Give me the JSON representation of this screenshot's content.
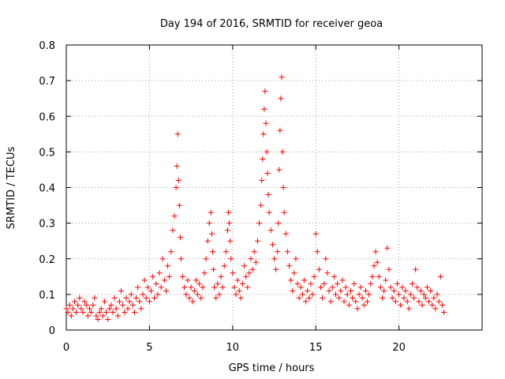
{
  "chart_data": {
    "type": "scatter",
    "title": "Day 194 of 2016, SRMTID for receiver geoa",
    "xlabel": "GPS time / hours",
    "ylabel": "SRMTID / TECUs",
    "xlim": [
      0,
      25
    ],
    "ylim": [
      0,
      0.8
    ],
    "xticks": [
      0,
      5,
      10,
      15,
      20
    ],
    "xtick_labels": [
      "0",
      "5",
      "10",
      "15",
      "20"
    ],
    "yticks": [
      0,
      0.1,
      0.2,
      0.3,
      0.4,
      0.5,
      0.6,
      0.7,
      0.8
    ],
    "ytick_labels": [
      "0",
      "0.1",
      "0.2",
      "0.3",
      "0.4",
      "0.5",
      "0.6",
      "0.7",
      "0.8"
    ],
    "grid": true,
    "marker": "plus",
    "color": "#ff0000",
    "series": [
      {
        "name": "SRMTID",
        "x": [
          0.0,
          0.1,
          0.2,
          0.3,
          0.4,
          0.5,
          0.6,
          0.7,
          0.8,
          0.9,
          1.0,
          1.1,
          1.2,
          1.3,
          1.4,
          1.5,
          1.6,
          1.7,
          1.8,
          1.9,
          2.0,
          2.1,
          2.2,
          2.3,
          2.4,
          2.5,
          2.6,
          2.7,
          2.8,
          2.9,
          3.0,
          3.1,
          3.2,
          3.3,
          3.4,
          3.5,
          3.6,
          3.7,
          3.8,
          3.9,
          4.0,
          4.1,
          4.2,
          4.3,
          4.4,
          4.5,
          4.6,
          4.7,
          4.8,
          4.9,
          5.0,
          5.1,
          5.2,
          5.3,
          5.4,
          5.5,
          5.6,
          5.7,
          5.8,
          5.9,
          6.0,
          6.1,
          6.2,
          6.3,
          6.4,
          6.5,
          6.6,
          6.65,
          6.7,
          6.75,
          6.8,
          6.85,
          6.9,
          7.0,
          7.1,
          7.2,
          7.3,
          7.4,
          7.5,
          7.6,
          7.7,
          7.8,
          7.9,
          8.0,
          8.1,
          8.2,
          8.3,
          8.4,
          8.5,
          8.6,
          8.7,
          8.75,
          8.8,
          8.85,
          8.9,
          9.0,
          9.1,
          9.2,
          9.3,
          9.4,
          9.5,
          9.6,
          9.7,
          9.75,
          9.8,
          9.85,
          9.9,
          10.0,
          10.1,
          10.2,
          10.3,
          10.4,
          10.5,
          10.6,
          10.7,
          10.8,
          10.9,
          11.0,
          11.1,
          11.2,
          11.3,
          11.4,
          11.5,
          11.6,
          11.7,
          11.75,
          11.8,
          11.85,
          11.9,
          11.95,
          12.0,
          12.05,
          12.1,
          12.15,
          12.2,
          12.3,
          12.4,
          12.5,
          12.6,
          12.7,
          12.75,
          12.8,
          12.85,
          12.9,
          12.95,
          13.0,
          13.05,
          13.1,
          13.2,
          13.3,
          13.4,
          13.5,
          13.6,
          13.7,
          13.8,
          13.9,
          14.0,
          14.1,
          14.2,
          14.3,
          14.4,
          14.5,
          14.6,
          14.7,
          14.8,
          14.9,
          15.0,
          15.1,
          15.2,
          15.3,
          15.4,
          15.5,
          15.6,
          15.7,
          15.8,
          15.9,
          16.0,
          16.1,
          16.2,
          16.3,
          16.4,
          16.5,
          16.6,
          16.7,
          16.8,
          16.9,
          17.0,
          17.1,
          17.2,
          17.3,
          17.4,
          17.5,
          17.6,
          17.7,
          17.8,
          17.9,
          18.0,
          18.1,
          18.2,
          18.3,
          18.4,
          18.5,
          18.6,
          18.7,
          18.8,
          18.9,
          19.0,
          19.1,
          19.2,
          19.3,
          19.4,
          19.5,
          19.6,
          19.7,
          19.8,
          19.9,
          20.0,
          20.1,
          20.2,
          20.3,
          20.4,
          20.5,
          20.6,
          20.7,
          20.8,
          20.9,
          21.0,
          21.1,
          21.2,
          21.3,
          21.4,
          21.5,
          21.6,
          21.7,
          21.8,
          21.9,
          22.0,
          22.1,
          22.2,
          22.3,
          22.4,
          22.5,
          22.6,
          22.7
        ],
        "y": [
          0.06,
          0.05,
          0.07,
          0.04,
          0.06,
          0.08,
          0.05,
          0.07,
          0.09,
          0.06,
          0.05,
          0.08,
          0.07,
          0.04,
          0.06,
          0.05,
          0.07,
          0.09,
          0.04,
          0.03,
          0.05,
          0.06,
          0.04,
          0.08,
          0.05,
          0.03,
          0.06,
          0.07,
          0.05,
          0.09,
          0.06,
          0.04,
          0.08,
          0.11,
          0.07,
          0.05,
          0.09,
          0.06,
          0.08,
          0.1,
          0.07,
          0.05,
          0.09,
          0.12,
          0.08,
          0.06,
          0.1,
          0.14,
          0.09,
          0.12,
          0.08,
          0.11,
          0.15,
          0.09,
          0.13,
          0.1,
          0.16,
          0.12,
          0.2,
          0.14,
          0.11,
          0.18,
          0.15,
          0.22,
          0.28,
          0.32,
          0.4,
          0.46,
          0.55,
          0.42,
          0.35,
          0.26,
          0.2,
          0.15,
          0.12,
          0.1,
          0.14,
          0.09,
          0.12,
          0.08,
          0.11,
          0.14,
          0.1,
          0.13,
          0.09,
          0.12,
          0.16,
          0.2,
          0.25,
          0.3,
          0.33,
          0.27,
          0.22,
          0.17,
          0.12,
          0.09,
          0.13,
          0.1,
          0.15,
          0.12,
          0.18,
          0.22,
          0.28,
          0.33,
          0.3,
          0.25,
          0.2,
          0.16,
          0.12,
          0.1,
          0.14,
          0.11,
          0.09,
          0.13,
          0.18,
          0.15,
          0.12,
          0.16,
          0.2,
          0.17,
          0.22,
          0.19,
          0.25,
          0.3,
          0.35,
          0.42,
          0.48,
          0.55,
          0.62,
          0.67,
          0.58,
          0.5,
          0.44,
          0.38,
          0.33,
          0.28,
          0.24,
          0.2,
          0.17,
          0.22,
          0.3,
          0.45,
          0.56,
          0.65,
          0.71,
          0.5,
          0.4,
          0.33,
          0.27,
          0.22,
          0.18,
          0.14,
          0.11,
          0.16,
          0.2,
          0.13,
          0.09,
          0.12,
          0.1,
          0.14,
          0.08,
          0.11,
          0.09,
          0.13,
          0.1,
          0.15,
          0.27,
          0.22,
          0.17,
          0.12,
          0.09,
          0.13,
          0.2,
          0.16,
          0.11,
          0.08,
          0.12,
          0.15,
          0.1,
          0.13,
          0.09,
          0.11,
          0.14,
          0.08,
          0.12,
          0.1,
          0.07,
          0.11,
          0.09,
          0.13,
          0.08,
          0.06,
          0.1,
          0.12,
          0.09,
          0.07,
          0.11,
          0.08,
          0.1,
          0.13,
          0.15,
          0.18,
          0.22,
          0.19,
          0.15,
          0.12,
          0.09,
          0.11,
          0.14,
          0.23,
          0.17,
          0.12,
          0.09,
          0.11,
          0.08,
          0.13,
          0.1,
          0.07,
          0.12,
          0.09,
          0.11,
          0.08,
          0.06,
          0.1,
          0.13,
          0.09,
          0.17,
          0.12,
          0.08,
          0.11,
          0.07,
          0.1,
          0.09,
          0.12,
          0.08,
          0.11,
          0.07,
          0.09,
          0.06,
          0.1,
          0.08,
          0.15,
          0.07,
          0.05
        ]
      }
    ]
  }
}
